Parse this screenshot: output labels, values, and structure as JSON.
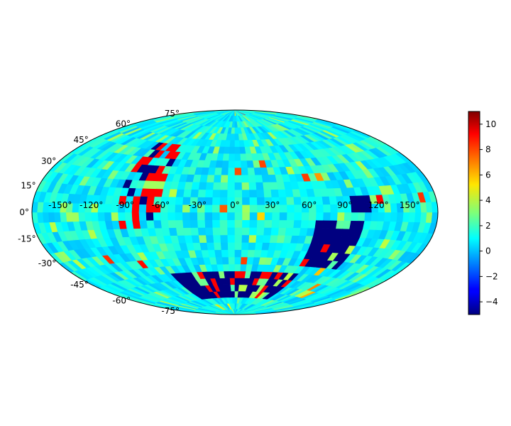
{
  "chart_data": {
    "type": "heatmap",
    "projection": "hammer",
    "title": "",
    "xlabel": "",
    "ylabel": "",
    "colormap": "jet",
    "grid": false,
    "lon_ticks": [
      "-150°",
      "-120°",
      "-90°",
      "-60°",
      "-30°",
      "0°",
      "30°",
      "60°",
      "90°",
      "120°",
      "150°"
    ],
    "lat_ticks": [
      "75°",
      "60°",
      "45°",
      "30°",
      "15°",
      "0°",
      "-15°",
      "-30°",
      "-45°",
      "-60°",
      "-75°"
    ],
    "lon_range": [
      -180,
      180
    ],
    "lat_range": [
      -90,
      90
    ],
    "grid_resolution_deg": 6,
    "background_value_range": [
      0,
      2
    ],
    "colorbar": {
      "placement": "right",
      "range": [
        -5,
        11
      ],
      "ticks": [
        "10",
        "8",
        "6",
        "4",
        "2",
        "0",
        "−2",
        "−4"
      ]
    },
    "features": [
      {
        "description": "strong negative region, lower right",
        "lon_range": [
          66,
          108
        ],
        "lat_range": [
          -42,
          -6
        ],
        "value": -5
      },
      {
        "description": "strong negative patch",
        "lon_range": [
          96,
          114
        ],
        "lat_range": [
          0,
          12
        ],
        "value": -5
      },
      {
        "description": "arc of extreme values along southern sky",
        "lon_range": [
          -72,
          72
        ],
        "lat_range": [
          -72,
          -48
        ],
        "value": -5
      },
      {
        "description": "arc of high values near lon -90 to -60",
        "lon_range": [
          -96,
          -60
        ],
        "lat_range": [
          -12,
          54
        ],
        "value": 9
      }
    ]
  }
}
